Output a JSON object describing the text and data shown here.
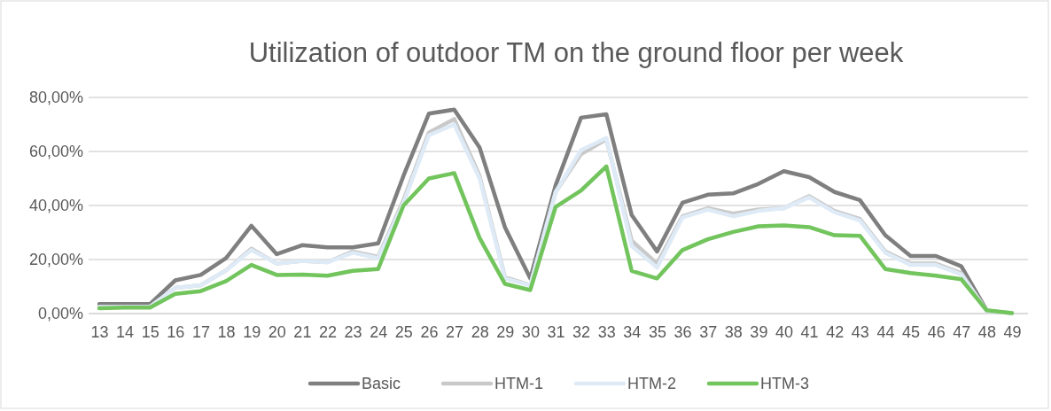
{
  "chart_data": {
    "type": "line",
    "title": "Utilization of outdoor TM on the ground floor per week",
    "categories": [
      "13",
      "14",
      "15",
      "16",
      "17",
      "18",
      "19",
      "20",
      "21",
      "22",
      "23",
      "24",
      "25",
      "26",
      "27",
      "28",
      "29",
      "30",
      "31",
      "32",
      "33",
      "34",
      "35",
      "36",
      "37",
      "38",
      "39",
      "40",
      "41",
      "42",
      "43",
      "44",
      "45",
      "46",
      "47",
      "48",
      "49"
    ],
    "series": [
      {
        "name": "Basic",
        "color": "#7f7f7f",
        "values": [
          3.5,
          3.5,
          3.5,
          12.3,
          14.3,
          20.5,
          32.5,
          22,
          25.3,
          24.5,
          24.5,
          26,
          51,
          74,
          75.5,
          61.5,
          32,
          13,
          47.5,
          72.5,
          73.8,
          36.5,
          23,
          41,
          44,
          44.5,
          48,
          52.7,
          50.5,
          45,
          42,
          29,
          21.3,
          21.3,
          17.5,
          1.2,
          null
        ]
      },
      {
        "name": "HTM-1",
        "color": "#c9c9c9",
        "values": [
          2.5,
          2.5,
          2.5,
          9.5,
          10.5,
          16,
          24,
          18.5,
          19.5,
          19,
          23,
          21,
          42,
          67,
          72,
          51,
          13.5,
          10.5,
          45,
          59,
          64.5,
          27,
          18.5,
          36,
          39,
          37,
          38.5,
          39,
          43.5,
          38,
          35,
          23,
          18.5,
          18.5,
          15,
          1,
          0.2
        ]
      },
      {
        "name": "HTM-2",
        "color": "#deebf7",
        "values": [
          2.5,
          2.5,
          2.5,
          9.5,
          10.5,
          16,
          23.5,
          18.5,
          19.5,
          19,
          22.5,
          20.5,
          41,
          66,
          70,
          50,
          13,
          10.5,
          45,
          60.5,
          65,
          25,
          17,
          35.5,
          38.5,
          36,
          38,
          39,
          43,
          37.5,
          34.5,
          22.5,
          18,
          18,
          14.5,
          1,
          0.2
        ]
      },
      {
        "name": "HTM-3",
        "color": "#72c45c",
        "values": [
          2,
          2.2,
          2.2,
          7.3,
          8.3,
          12,
          18,
          14.3,
          14.4,
          14,
          15.8,
          16.5,
          40,
          50,
          52,
          28,
          11,
          8.7,
          39.5,
          45.5,
          54.5,
          15.8,
          13,
          23.5,
          27.5,
          30.2,
          32.3,
          32.6,
          32,
          29,
          28.8,
          16.5,
          15,
          14,
          12.7,
          1.2,
          0.2
        ]
      }
    ],
    "ylim": [
      0,
      80
    ],
    "yticks": [
      {
        "value": 0,
        "label": "0,00%"
      },
      {
        "value": 20,
        "label": "20,00%"
      },
      {
        "value": 40,
        "label": "40,00%"
      },
      {
        "value": 60,
        "label": "60,00%"
      },
      {
        "value": 80,
        "label": "80,00%"
      }
    ],
    "grid": "y",
    "legend": "bottom",
    "marker": "none",
    "line_style": "solid"
  }
}
